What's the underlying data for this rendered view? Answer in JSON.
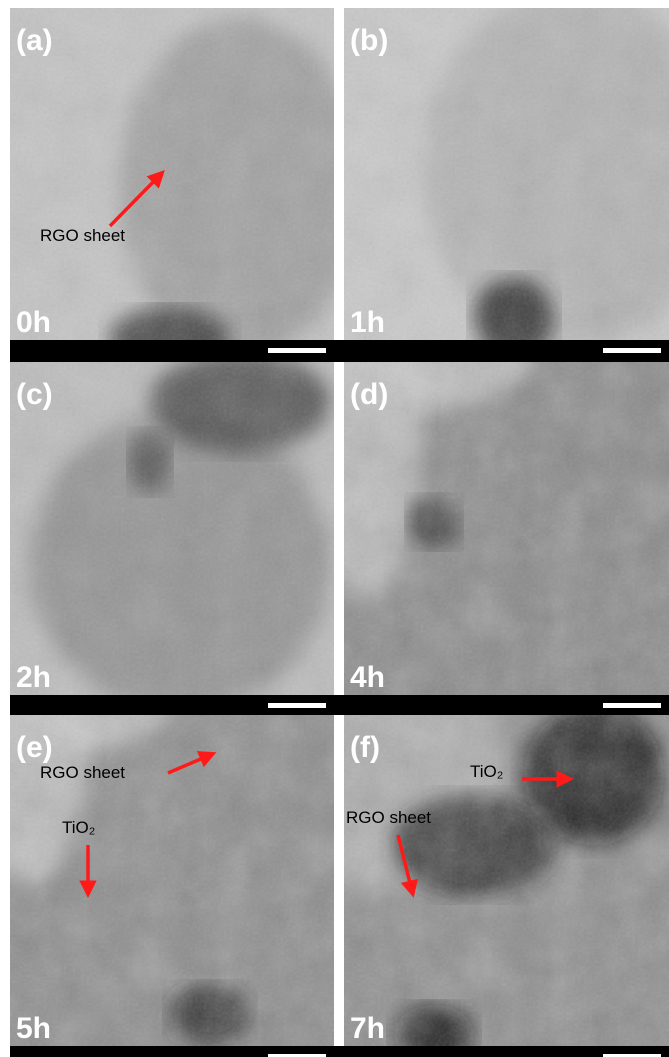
{
  "panels": [
    {
      "label": "(a)",
      "time": "0h",
      "annotations": [
        {
          "text": "RGO sheet"
        }
      ]
    },
    {
      "label": "(b)",
      "time": "1h",
      "annotations": []
    },
    {
      "label": "(c)",
      "time": "2h",
      "annotations": []
    },
    {
      "label": "(d)",
      "time": "4h",
      "annotations": []
    },
    {
      "label": "(e)",
      "time": "5h",
      "annotations": [
        {
          "text": "RGO sheet"
        },
        {
          "text": "TiO₂"
        }
      ]
    },
    {
      "label": "(f)",
      "time": "7h",
      "annotations": [
        {
          "text": "TiO₂"
        },
        {
          "text": "RGO sheet"
        }
      ]
    }
  ]
}
